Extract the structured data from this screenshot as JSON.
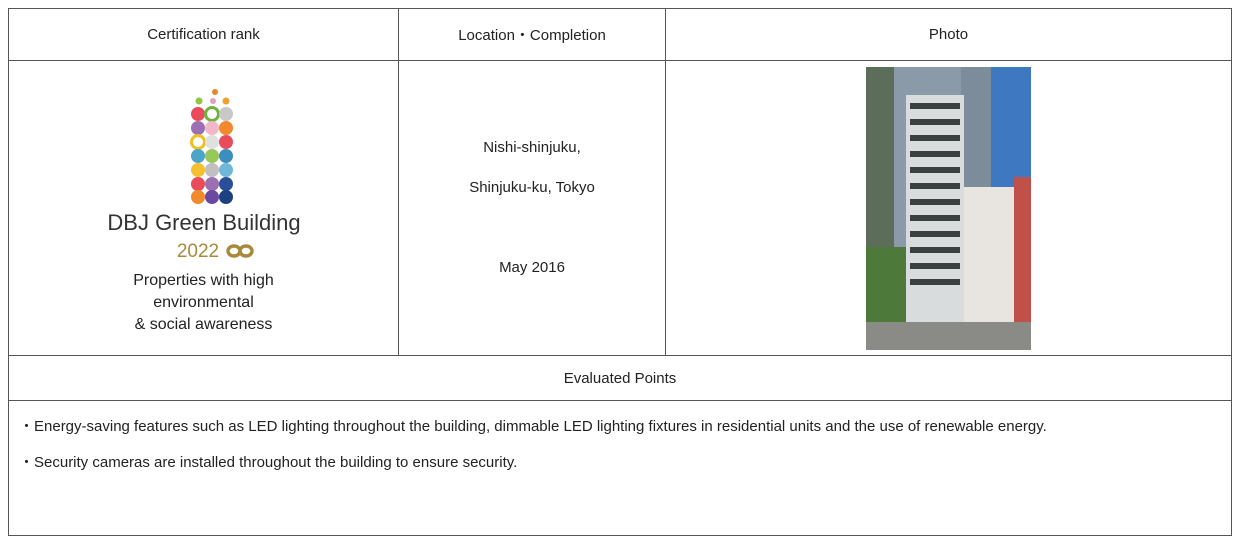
{
  "table": {
    "headers": [
      "Certification rank",
      "Location・Completion",
      "Photo"
    ],
    "logo": {
      "name": "DBJ Green Building",
      "year": "2022"
    },
    "rank_description": [
      "Properties with high",
      "environmental",
      "& social awareness"
    ],
    "location": [
      "Nishi-shinjuku,",
      "Shinjuku-ku, Tokyo"
    ],
    "completion": "May 2016",
    "evaluated_title": "Evaluated Points",
    "evaluated_points": [
      "・Energy-saving features such as LED lighting throughout the building, dimmable LED lighting fixtures in residential units and the use of renewable energy.",
      "・Security cameras are installed throughout the building to ensure security."
    ]
  }
}
